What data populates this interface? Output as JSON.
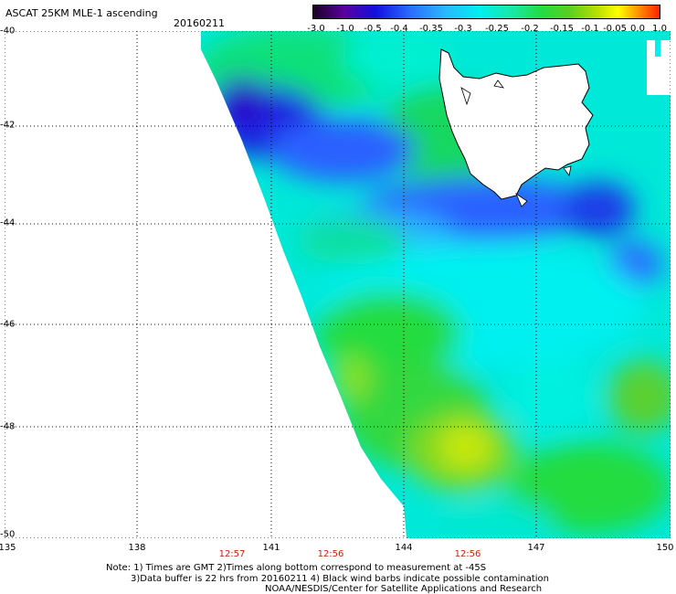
{
  "header": {
    "title": "ASCAT 25KM MLE-1 ascending",
    "date": "20160211"
  },
  "colorbar": {
    "labels": [
      "-3.0",
      "-1.0",
      "-0.5",
      "-0.4",
      "-0.35",
      "-0.3",
      "-0.25",
      "-0.2",
      "-0.15",
      "-0.1",
      "-0.05",
      "0.0",
      "1.0"
    ],
    "colors": [
      "#1a0026",
      "#5a00a0",
      "#1010e0",
      "#2a6cff",
      "#29b8ff",
      "#00f0f0",
      "#1ae8a0",
      "#22dc40",
      "#5ad020",
      "#b8e000",
      "#ffff00",
      "#ff9000",
      "#ff2000"
    ]
  },
  "axes": {
    "lat_labels": [
      "-40",
      "-42",
      "-44",
      "-46",
      "-48",
      "-50"
    ],
    "lon_labels": [
      "135",
      "138",
      "141",
      "144",
      "147",
      "150"
    ]
  },
  "time_labels": [
    "12:57",
    "12:56",
    "12:56"
  ],
  "notes": {
    "line1": "Note: 1) Times are GMT 2)Times along bottom correspond to measurement at -45S",
    "line2": "3)Data buffer is 22 hrs from 20160211 4) Black wind barbs indicate possible contamination",
    "line3": "NOAA/NESDIS/Center for Satellite Applications and Research"
  }
}
